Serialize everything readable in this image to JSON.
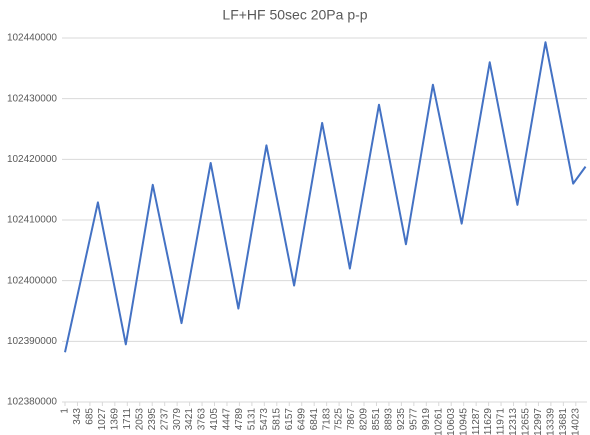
{
  "chart_data": {
    "type": "line",
    "title": "LF+HF 50sec 20Pa p-p",
    "x": [
      1,
      904,
      1670,
      2410,
      3200,
      4000,
      4760,
      5530,
      6290,
      7060,
      7820,
      8620,
      9360,
      10100,
      10890,
      11660,
      12420,
      13190,
      13950,
      14290
    ],
    "series": [
      {
        "color": "#4472c4",
        "values": [
          102388200,
          102412900,
          102389500,
          102415800,
          102393000,
          102419400,
          102395400,
          102422300,
          102399200,
          102426000,
          102402000,
          102429000,
          102406000,
          102432300,
          102409400,
          102436000,
          102412500,
          102439300,
          102416000,
          102418800
        ]
      }
    ],
    "xlim": [
      1,
      14330
    ],
    "xticks": [
      1,
      343,
      685,
      1027,
      1369,
      1711,
      2053,
      2395,
      2737,
      3079,
      3421,
      3763,
      4105,
      4447,
      4789,
      5131,
      5473,
      5815,
      6157,
      6499,
      6841,
      7183,
      7525,
      7867,
      8209,
      8551,
      8893,
      9235,
      9577,
      9919,
      10261,
      10603,
      10945,
      11287,
      11629,
      11971,
      12313,
      12655,
      12997,
      13339,
      13681,
      14023
    ],
    "ylim": [
      102380000,
      102440000
    ],
    "yticks": [
      102380000,
      102390000,
      102400000,
      102410000,
      102420000,
      102430000,
      102440000
    ],
    "grid": true
  }
}
